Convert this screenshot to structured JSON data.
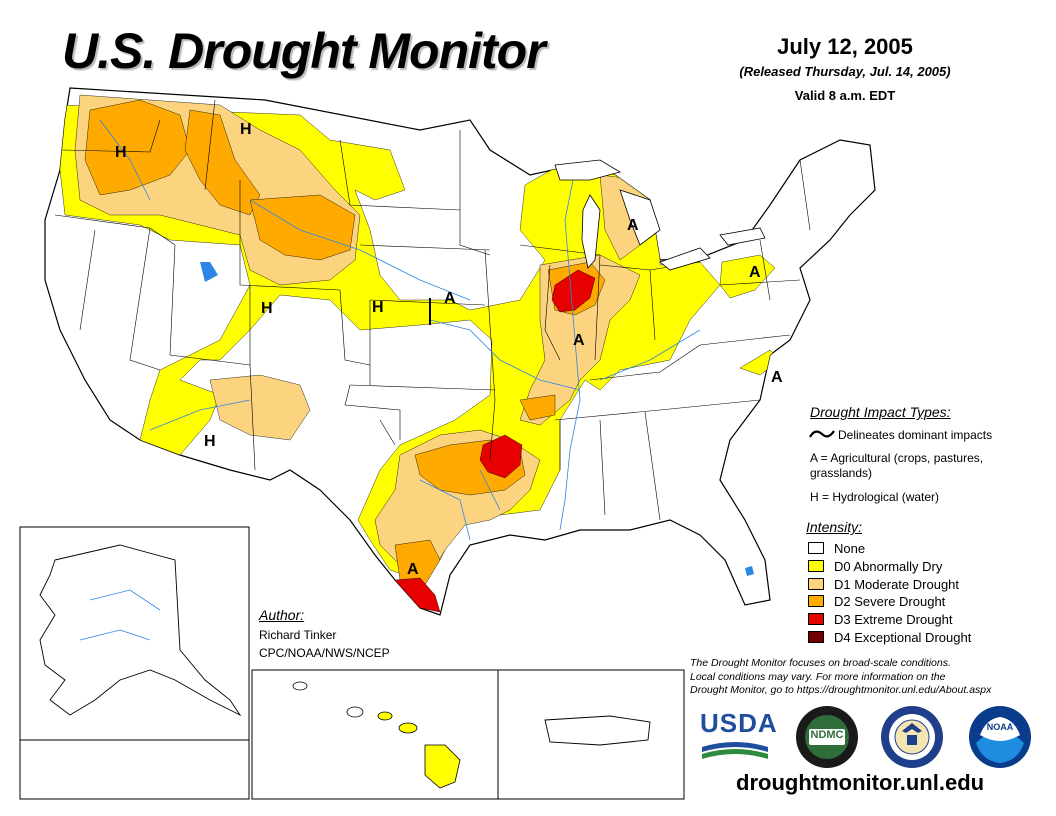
{
  "header": {
    "title": "U.S. Drought Monitor",
    "date": "July 12, 2005",
    "released": "(Released Thursday, Jul. 14, 2005)",
    "valid": "Valid 8 a.m. EDT"
  },
  "map_labels": [
    {
      "id": "h-oregon",
      "text": "H"
    },
    {
      "id": "h-montana",
      "text": "H"
    },
    {
      "id": "h-colorado",
      "text": "H"
    },
    {
      "id": "h-nebraska",
      "text": "H"
    },
    {
      "id": "h-arizona",
      "text": "H"
    },
    {
      "id": "a-kansas",
      "text": "A"
    },
    {
      "id": "a-michigan",
      "text": "A"
    },
    {
      "id": "a-illinois",
      "text": "A"
    },
    {
      "id": "a-newyork",
      "text": "A"
    },
    {
      "id": "a-virginia",
      "text": "A"
    },
    {
      "id": "a-texas",
      "text": "A"
    }
  ],
  "impact_legend": {
    "title": "Drought Impact Types:",
    "delineates": "Delineates dominant impacts",
    "agricultural_line1": "A = Agricultural (crops, pastures,",
    "agricultural_line2": "grasslands)",
    "hydrological": "H = Hydrological (water)"
  },
  "intensity_legend": {
    "title": "Intensity:",
    "items": [
      {
        "label": "None",
        "color": "#ffffff"
      },
      {
        "label": "D0 Abnormally Dry",
        "color": "#ffff00"
      },
      {
        "label": "D1 Moderate Drought",
        "color": "#fcd37f"
      },
      {
        "label": "D2 Severe Drought",
        "color": "#ffaa00"
      },
      {
        "label": "D3 Extreme Drought",
        "color": "#e60000"
      },
      {
        "label": "D4 Exceptional Drought",
        "color": "#730000"
      }
    ]
  },
  "author": {
    "title": "Author:",
    "name": "Richard Tinker",
    "org": "CPC/NOAA/NWS/NCEP"
  },
  "note": {
    "line1": "The Drought Monitor focuses on broad-scale conditions.",
    "line2": "Local conditions may vary. For more information on the",
    "line3": "Drought Monitor, go to https://droughtmonitor.unl.edu/About.aspx"
  },
  "logos": {
    "usda": "USDA",
    "ndmc": "NDMC",
    "noaa": "NOAA"
  },
  "footer": {
    "url": "droughtmonitor.unl.edu"
  },
  "colors": {
    "d0": "#ffff00",
    "d1": "#fcd37f",
    "d2": "#ffaa00",
    "d3": "#e60000",
    "d4": "#730000",
    "water": "#2e86e6",
    "border": "#000000"
  }
}
